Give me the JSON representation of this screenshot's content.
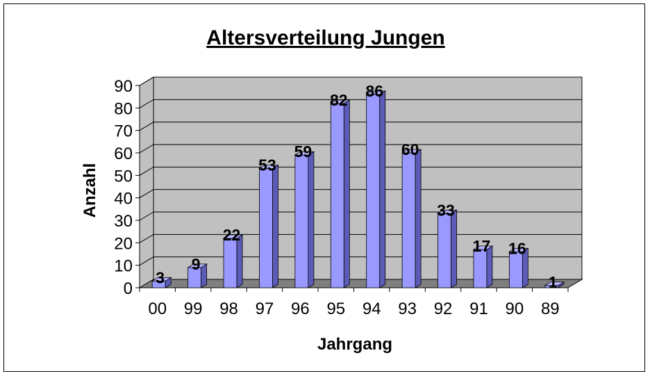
{
  "chart_data": {
    "type": "bar",
    "title": "Altersverteilung Jungen",
    "xlabel": "Jahrgang",
    "ylabel": "Anzahl",
    "categories": [
      "00",
      "99",
      "98",
      "97",
      "96",
      "95",
      "94",
      "93",
      "92",
      "91",
      "90",
      "89"
    ],
    "values": [
      3,
      9,
      22,
      53,
      59,
      82,
      86,
      60,
      33,
      17,
      16,
      1
    ],
    "ylim": [
      0,
      90
    ],
    "yticks": [
      "0",
      "10",
      "20",
      "30",
      "40",
      "50",
      "60",
      "70",
      "80",
      "90"
    ],
    "grid": true,
    "legend": "none",
    "style": "3d-column",
    "colors": {
      "bar_front": "#9999ff",
      "bar_side": "#5c5cb8",
      "bar_top": "#b8b8ff",
      "wall": "#c0c0c0",
      "floor": "#808080"
    },
    "data_labels": true
  }
}
